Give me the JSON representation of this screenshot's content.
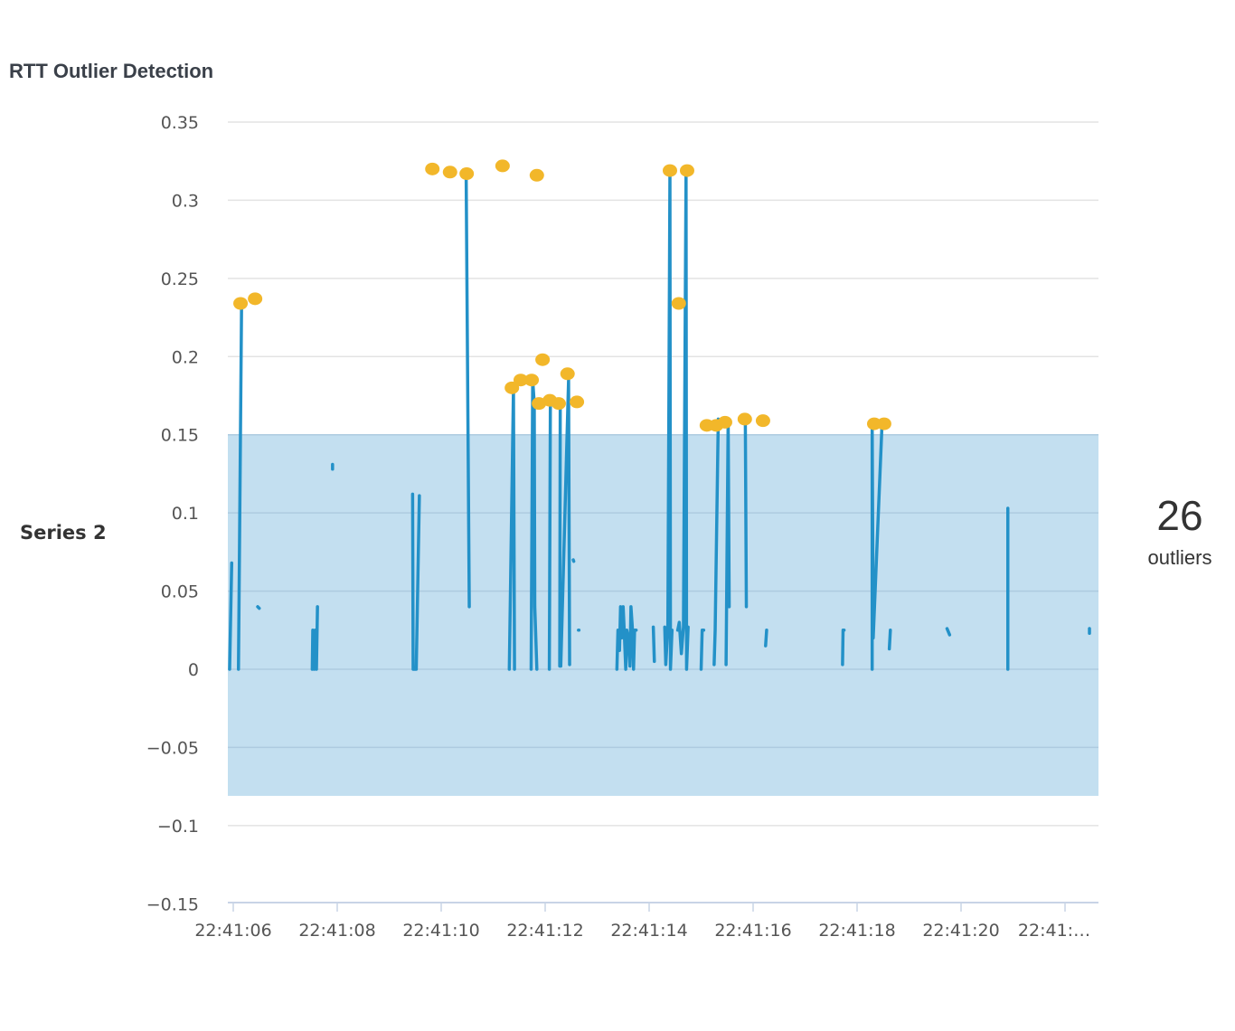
{
  "chart_data": {
    "type": "line",
    "title": "RTT Outlier Detection",
    "series_name": "Series 2",
    "outlier_count": "26",
    "outlier_label": "outliers",
    "xlabel": "",
    "ylabel": "",
    "x_unit": "seconds after 22:41:00",
    "xlim": [
      5.9,
      22.65
    ],
    "ylim": [
      -0.15,
      0.35
    ],
    "y_ticks": [
      0.35,
      0.3,
      0.25,
      0.2,
      0.15,
      0.1,
      0.05,
      0,
      -0.05,
      -0.1,
      -0.15
    ],
    "y_tick_labels": [
      "0.35",
      "0.3",
      "0.25",
      "0.2",
      "0.15",
      "0.1",
      "0.05",
      "0",
      "−0.05",
      "−0.1",
      "−0.15"
    ],
    "x_ticks": [
      6,
      8,
      10,
      12,
      14,
      16,
      18,
      20,
      22
    ],
    "x_tick_labels": [
      "22:41:06",
      "22:41:08",
      "22:41:10",
      "22:41:12",
      "22:41:14",
      "22:41:16",
      "22:41:18",
      "22:41:20",
      "22:41:…"
    ],
    "grid": true,
    "band": {
      "lower": -0.081,
      "upper": 0.15
    },
    "colors": {
      "line": "#2391c8",
      "band": "#c3dff0",
      "outlier": "#f2b72a",
      "grid": "#e3e3e3",
      "text": "#3a4049"
    },
    "segments": [
      [
        [
          5.93,
          0
        ],
        [
          5.97,
          0.068
        ]
      ],
      [
        [
          6.1,
          0
        ],
        [
          6.16,
          0.234
        ]
      ],
      [
        [
          6.47,
          0.04
        ],
        [
          6.5,
          0.039
        ]
      ],
      [
        [
          7.52,
          0
        ],
        [
          7.53,
          0.025
        ],
        [
          7.56,
          0
        ],
        [
          7.58,
          0.025
        ],
        [
          7.6,
          0
        ],
        [
          7.62,
          0.04
        ]
      ],
      [
        [
          7.91,
          0.131
        ],
        [
          7.91,
          0.128
        ]
      ],
      [
        [
          9.45,
          0.112
        ],
        [
          9.46,
          0
        ],
        [
          9.52,
          0
        ],
        [
          9.58,
          0.111
        ]
      ],
      [
        [
          10.48,
          0.317
        ],
        [
          10.54,
          0.04
        ]
      ],
      [
        [
          11.31,
          0
        ],
        [
          11.39,
          0.18
        ],
        [
          11.41,
          0
        ]
      ],
      [
        [
          11.73,
          0
        ],
        [
          11.76,
          0.185
        ],
        [
          11.79,
          0.17
        ],
        [
          11.8,
          0.04
        ],
        [
          11.84,
          0
        ]
      ],
      [
        [
          12.08,
          0
        ],
        [
          12.1,
          0.17
        ]
      ],
      [
        [
          12.28,
          0.002
        ],
        [
          12.29,
          0.17
        ]
      ],
      [
        [
          12.3,
          0.002
        ],
        [
          12.45,
          0.185
        ],
        [
          12.47,
          0.003
        ]
      ],
      [
        [
          12.54,
          0.07
        ],
        [
          12.55,
          0.069
        ]
      ],
      [
        [
          12.64,
          0.025
        ],
        [
          12.65,
          0.025
        ]
      ],
      [
        [
          13.38,
          0
        ],
        [
          13.4,
          0.025
        ],
        [
          13.43,
          0.012
        ],
        [
          13.45,
          0.04
        ],
        [
          13.47,
          0.02
        ],
        [
          13.5,
          0.04
        ],
        [
          13.52,
          0.025
        ],
        [
          13.55,
          0
        ],
        [
          13.57,
          0.025
        ],
        [
          13.6,
          0.02
        ],
        [
          13.63,
          0.002
        ],
        [
          13.65,
          0.04
        ],
        [
          13.68,
          0.025
        ],
        [
          13.7,
          0
        ],
        [
          13.72,
          0.025
        ],
        [
          13.75,
          0.025
        ]
      ],
      [
        [
          14.08,
          0.027
        ],
        [
          14.1,
          0.005
        ]
      ],
      [
        [
          14.3,
          0.027
        ],
        [
          14.32,
          0.003
        ],
        [
          14.36,
          0.027
        ],
        [
          14.4,
          0.319
        ],
        [
          14.41,
          0
        ],
        [
          14.44,
          0.025
        ]
      ],
      [
        [
          14.55,
          0.025
        ],
        [
          14.58,
          0.03
        ],
        [
          14.62,
          0.01
        ],
        [
          14.66,
          0.027
        ],
        [
          14.71,
          0.319
        ],
        [
          14.72,
          0
        ],
        [
          14.75,
          0.027
        ]
      ],
      [
        [
          15.0,
          0
        ],
        [
          15.02,
          0.025
        ],
        [
          15.05,
          0.025
        ]
      ],
      [
        [
          15.25,
          0.003
        ],
        [
          15.27,
          0.025
        ],
        [
          15.33,
          0.16
        ]
      ],
      [
        [
          15.48,
          0.003
        ],
        [
          15.52,
          0.16
        ],
        [
          15.54,
          0.04
        ]
      ],
      [
        [
          15.85,
          0.16
        ],
        [
          15.87,
          0.04
        ]
      ],
      [
        [
          16.24,
          0.015
        ],
        [
          16.26,
          0.025
        ]
      ],
      [
        [
          17.72,
          0.003
        ],
        [
          17.73,
          0.025
        ],
        [
          17.75,
          0.025
        ]
      ],
      [
        [
          18.29,
          0
        ],
        [
          18.29,
          0.157
        ],
        [
          18.31,
          0.02
        ],
        [
          18.48,
          0.157
        ]
      ],
      [
        [
          18.62,
          0.013
        ],
        [
          18.64,
          0.025
        ]
      ],
      [
        [
          19.73,
          0.026
        ],
        [
          19.78,
          0.022
        ]
      ],
      [
        [
          20.9,
          0
        ],
        [
          20.9,
          0.103
        ]
      ],
      [
        [
          22.47,
          0.026
        ],
        [
          22.47,
          0.023
        ]
      ]
    ],
    "outliers": [
      [
        6.14,
        0.234
      ],
      [
        6.42,
        0.237
      ],
      [
        9.83,
        0.32
      ],
      [
        10.17,
        0.318
      ],
      [
        10.49,
        0.317
      ],
      [
        11.18,
        0.322
      ],
      [
        11.84,
        0.316
      ],
      [
        11.36,
        0.18
      ],
      [
        11.53,
        0.185
      ],
      [
        11.74,
        0.185
      ],
      [
        11.95,
        0.198
      ],
      [
        11.88,
        0.17
      ],
      [
        12.09,
        0.172
      ],
      [
        12.26,
        0.17
      ],
      [
        12.43,
        0.189
      ],
      [
        12.61,
        0.171
      ],
      [
        14.4,
        0.319
      ],
      [
        14.73,
        0.319
      ],
      [
        14.57,
        0.234
      ],
      [
        15.11,
        0.156
      ],
      [
        15.29,
        0.156
      ],
      [
        15.46,
        0.158
      ],
      [
        15.84,
        0.16
      ],
      [
        16.19,
        0.159
      ],
      [
        18.33,
        0.157
      ],
      [
        18.52,
        0.157
      ]
    ]
  }
}
